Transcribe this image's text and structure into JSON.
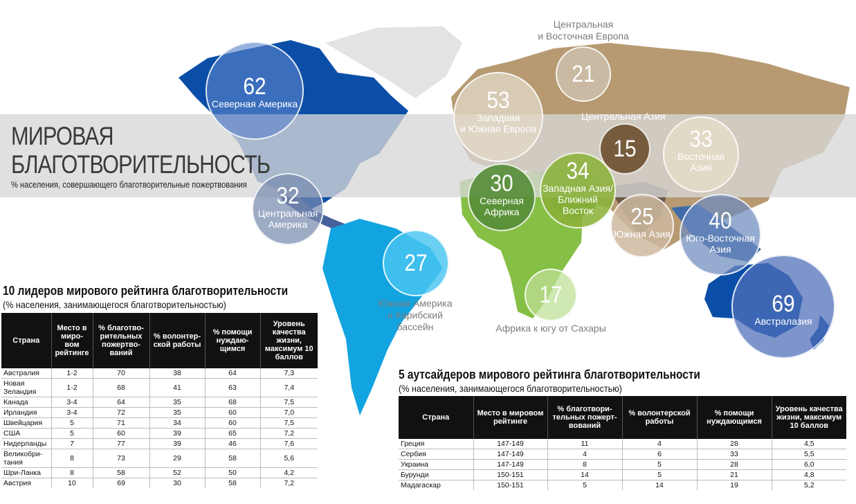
{
  "header": {
    "title_line1": "МИРОВАЯ",
    "title_line2": "БЛАГОТВОРИТЕЛЬНОСТЬ",
    "subtitle": "% населения, совершающего благотворительные пожертвования"
  },
  "regions": [
    {
      "value": "62",
      "name": "Северная Америка"
    },
    {
      "value": "32",
      "name_line1": "Центральная",
      "name_line2": "Америка"
    },
    {
      "value": "27",
      "name_line1": "Южная Америка",
      "name_line2": "и Карибский",
      "name_line3": "бассейн"
    },
    {
      "value": "53",
      "name_line1": "Западная",
      "name_line2": "и Южная Европа"
    },
    {
      "value": "21",
      "name_line1": "Центральная",
      "name_line2": "и Восточная Европа"
    },
    {
      "value": "15",
      "name": "Центральная Азия"
    },
    {
      "value": "33",
      "name_line1": "Восточная",
      "name_line2": "Азия"
    },
    {
      "value": "30",
      "name_line1": "Северная",
      "name_line2": "Африка"
    },
    {
      "value": "34",
      "name_line1": "Западная Азия/",
      "name_line2": "Ближний",
      "name_line3": "Восток"
    },
    {
      "value": "25",
      "name": "Южная Азия"
    },
    {
      "value": "40",
      "name_line1": "Юго-Восточная",
      "name_line2": "Азия"
    },
    {
      "value": "17",
      "name": "Африка к югу от Сахары"
    },
    {
      "value": "69",
      "name": "Австралазия"
    }
  ],
  "leaders": {
    "title": "10 лидеров мирового рейтинга благотворительности",
    "subtitle": "(% населения, занимающегося благотворительностью)",
    "columns": [
      "Страна",
      "Место в миро-вом рейтинге",
      "% благотво-рительных пожертво-ваний",
      "% волонтер-ской работы",
      "% помощи нуждаю-щимся",
      "Уровень качества жизни, максимум 10 баллов"
    ],
    "rows": [
      [
        "Австралия",
        "1-2",
        "70",
        "38",
        "64",
        "7,3"
      ],
      [
        "Новая Зеландия",
        "1-2",
        "68",
        "41",
        "63",
        "7,4"
      ],
      [
        "Канада",
        "3-4",
        "64",
        "35",
        "68",
        "7,5"
      ],
      [
        "Ирландия",
        "3-4",
        "72",
        "35",
        "60",
        "7,0"
      ],
      [
        "Швейцария",
        "5",
        "71",
        "34",
        "60",
        "7,5"
      ],
      [
        "США",
        "5",
        "60",
        "39",
        "65",
        "7,2"
      ],
      [
        "Нидерланды",
        "7",
        "77",
        "39",
        "46",
        "7,6"
      ],
      [
        "Великобри-тания",
        "8",
        "73",
        "29",
        "58",
        "5,6"
      ],
      [
        "Шри-Ланка",
        "8",
        "58",
        "52",
        "50",
        "4,2"
      ],
      [
        "Австрия",
        "10",
        "69",
        "30",
        "58",
        "7,2"
      ]
    ]
  },
  "outsiders": {
    "title": "5 аутсайдеров мирового рейтинга благотворительности",
    "subtitle": "(% населения, занимающегося благотворительностью)",
    "columns": [
      "Страна",
      "Место в мировом рейтинге",
      "% благотвори-тельных пожерт-вований",
      "% волонтерской работы",
      "% помощи нуждающимся",
      "Уровень качества жизни, максимум 10 баллов"
    ],
    "rows": [
      [
        "Греция",
        "147-149",
        "11",
        "4",
        "28",
        "4,5"
      ],
      [
        "Сербия",
        "147-149",
        "4",
        "6",
        "33",
        "5,5"
      ],
      [
        "Украина",
        "147-149",
        "8",
        "5",
        "28",
        "6,0"
      ],
      [
        "Бурунди",
        "150-151",
        "14",
        "5",
        "21",
        "4,8"
      ],
      [
        "Мадагаскар",
        "150-151",
        "5",
        "14",
        "19",
        "5,2"
      ]
    ]
  },
  "colors": {
    "north_america": "#0a4ea8",
    "south_america": "#12a4e0",
    "europe_asia": "#b79a72",
    "africa": "#86bf45",
    "oceania": "#0a4ea8",
    "greenland": "#e3e3e3"
  }
}
